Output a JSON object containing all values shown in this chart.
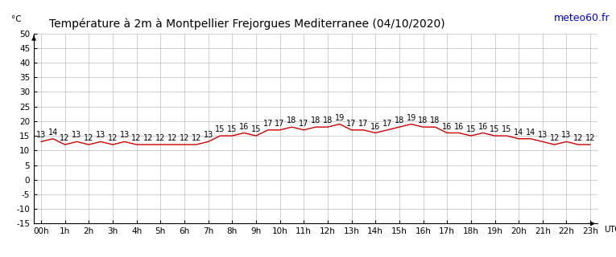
{
  "title": "Température à 2m à Montpellier Frejorgues Mediterranee (04/10/2020)",
  "ylabel": "°C",
  "xlabel_right": "UTC",
  "watermark": "meteo60.fr",
  "temperatures": [
    13,
    14,
    12,
    13,
    12,
    13,
    12,
    13,
    12,
    12,
    12,
    12,
    12,
    12,
    13,
    15,
    15,
    16,
    15,
    17,
    17,
    18,
    17,
    18,
    18,
    19,
    17,
    17,
    16,
    17,
    18,
    19,
    18,
    18,
    16,
    16,
    15,
    16,
    15,
    15,
    14,
    14,
    13,
    12,
    13,
    12,
    12
  ],
  "hours": [
    "00h",
    "1h",
    "2h",
    "3h",
    "4h",
    "5h",
    "6h",
    "7h",
    "8h",
    "9h",
    "10h",
    "11h",
    "12h",
    "13h",
    "14h",
    "15h",
    "16h",
    "17h",
    "18h",
    "19h",
    "20h",
    "21h",
    "22h",
    "23h"
  ],
  "ylim": [
    -15,
    50
  ],
  "yticks": [
    -15,
    -10,
    -5,
    0,
    5,
    10,
    15,
    20,
    25,
    30,
    35,
    40,
    45,
    50
  ],
  "line_color": "#cc0000",
  "bg_color": "#ffffff",
  "grid_color": "#bbbbbb",
  "title_color": "#000000",
  "watermark_color": "#0000cc",
  "title_fontsize": 10,
  "tick_fontsize": 7.5,
  "annot_fontsize": 7
}
